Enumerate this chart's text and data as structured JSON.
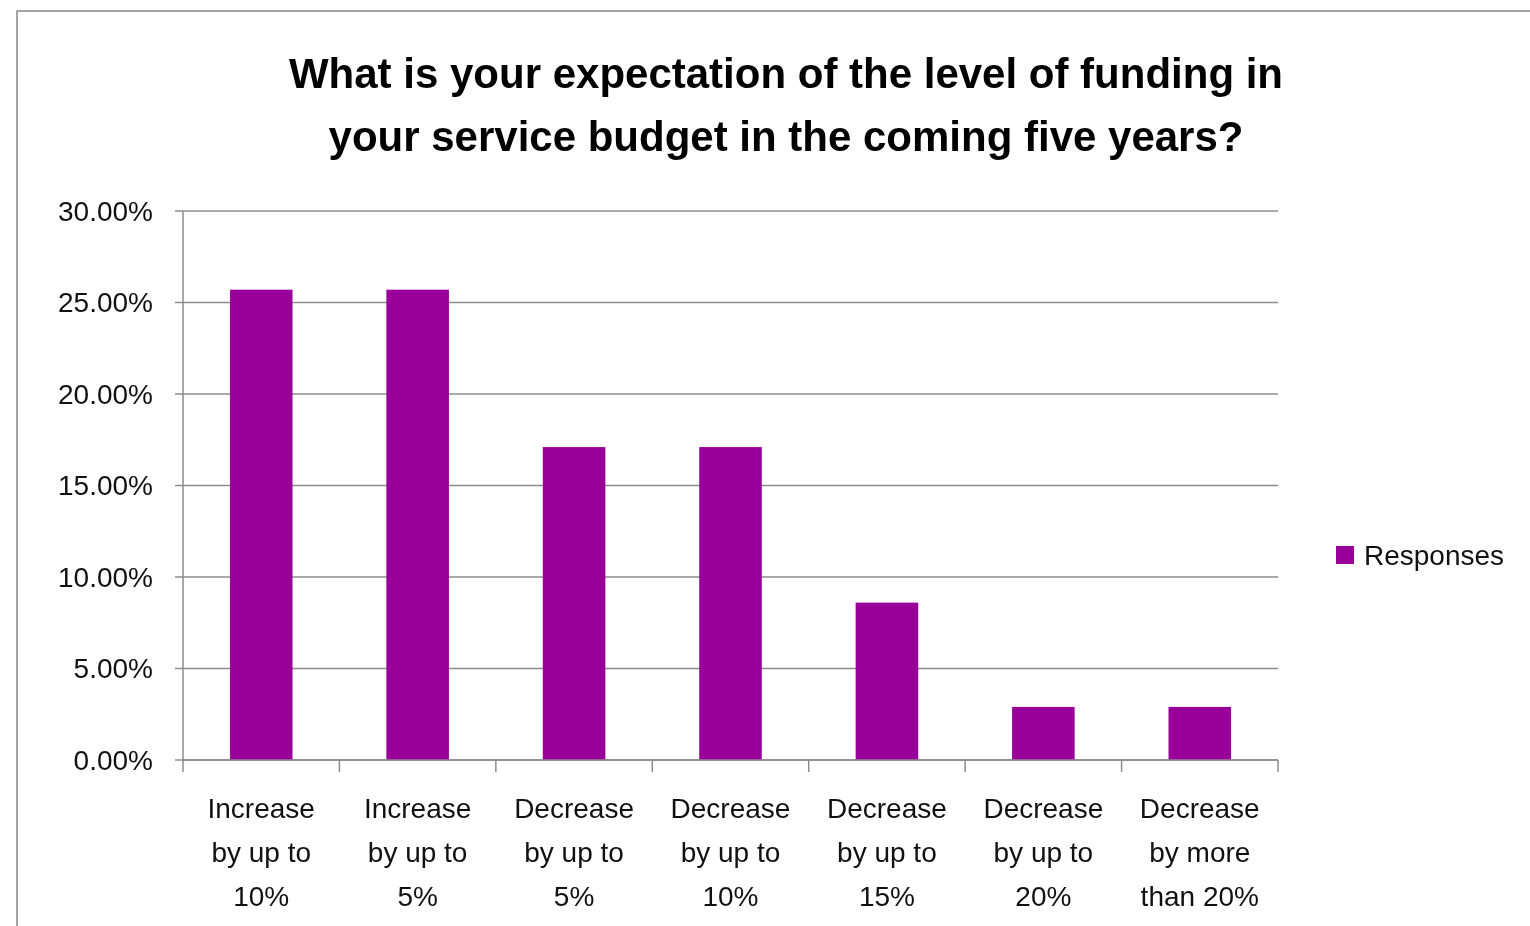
{
  "chart_data": {
    "type": "bar",
    "title": "What is your expectation of the level of funding in your service budget in the coming five years?",
    "categories": [
      "Increase by up to 10%",
      "Increase by up to 5%",
      "Decrease by up to 5%",
      "Decrease by up to 10%",
      "Decrease by up to 15%",
      "Decrease by up to 20%",
      "Decrease by more than 20%"
    ],
    "series": [
      {
        "name": "Responses",
        "color": "#990099",
        "values": [
          25.7,
          25.7,
          17.1,
          17.1,
          8.6,
          2.9,
          2.9
        ]
      }
    ],
    "ylim": [
      0,
      30
    ],
    "yticks": [
      {
        "value": 0,
        "label": "0.00%"
      },
      {
        "value": 5,
        "label": "5.00%"
      },
      {
        "value": 10,
        "label": "10.00%"
      },
      {
        "value": 15,
        "label": "15.00%"
      },
      {
        "value": 20,
        "label": "20.00%"
      },
      {
        "value": 25,
        "label": "25.00%"
      },
      {
        "value": 30,
        "label": "30.00%"
      }
    ],
    "grid": "y",
    "legend": "right"
  }
}
